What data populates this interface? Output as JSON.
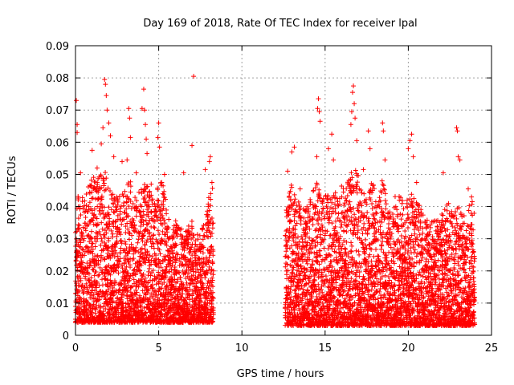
{
  "chart_data": {
    "type": "scatter",
    "title": "Day 169 of 2018, Rate Of TEC Index for receiver lpal",
    "xlabel": "GPS time / hours",
    "ylabel": "ROTI / TECUs",
    "xlim": [
      0,
      25
    ],
    "ylim": [
      0,
      0.09
    ],
    "grid": true,
    "marker": "+",
    "color": "#ff0000",
    "x_ticks": [
      {
        "v": 0,
        "label": "0"
      },
      {
        "v": 5,
        "label": "5"
      },
      {
        "v": 10,
        "label": "10"
      },
      {
        "v": 15,
        "label": "15"
      },
      {
        "v": 20,
        "label": "20"
      },
      {
        "v": 25,
        "label": "25"
      }
    ],
    "y_ticks": [
      {
        "v": 0,
        "label": "0"
      },
      {
        "v": 0.01,
        "label": "0.01"
      },
      {
        "v": 0.02,
        "label": "0.02"
      },
      {
        "v": 0.03,
        "label": "0.03"
      },
      {
        "v": 0.04,
        "label": "0.04"
      },
      {
        "v": 0.05,
        "label": "0.05"
      },
      {
        "v": 0.06,
        "label": "0.06"
      },
      {
        "v": 0.07,
        "label": "0.07"
      },
      {
        "v": 0.08,
        "label": "0.08"
      },
      {
        "v": 0.09,
        "label": "0.09"
      }
    ],
    "data_segments": [
      {
        "x_start": 0.0,
        "x_end": 8.3,
        "y_floor": 0.004
      },
      {
        "x_start": 12.6,
        "x_end": 24.0,
        "y_floor": 0.003
      }
    ],
    "series": [
      {
        "name": "ROTI",
        "points": [
          [
            0.05,
            0.073
          ],
          [
            0.1,
            0.0655
          ],
          [
            0.1,
            0.063
          ],
          [
            0.3,
            0.0505
          ],
          [
            0.45,
            0.0395
          ],
          [
            1.0,
            0.0575
          ],
          [
            1.3,
            0.052
          ],
          [
            1.55,
            0.0595
          ],
          [
            1.65,
            0.0645
          ],
          [
            1.75,
            0.0795
          ],
          [
            1.8,
            0.078
          ],
          [
            1.85,
            0.0745
          ],
          [
            1.9,
            0.07
          ],
          [
            2.0,
            0.066
          ],
          [
            2.1,
            0.062
          ],
          [
            2.3,
            0.0555
          ],
          [
            2.8,
            0.054
          ],
          [
            3.1,
            0.0545
          ],
          [
            3.2,
            0.0705
          ],
          [
            3.25,
            0.0675
          ],
          [
            3.3,
            0.0615
          ],
          [
            3.65,
            0.0505
          ],
          [
            4.0,
            0.0705
          ],
          [
            4.1,
            0.0765
          ],
          [
            4.15,
            0.07
          ],
          [
            4.2,
            0.0655
          ],
          [
            4.25,
            0.061
          ],
          [
            4.3,
            0.0565
          ],
          [
            4.55,
            0.047
          ],
          [
            4.95,
            0.0615
          ],
          [
            5.0,
            0.066
          ],
          [
            5.05,
            0.0585
          ],
          [
            5.35,
            0.05
          ],
          [
            6.5,
            0.0505
          ],
          [
            7.0,
            0.059
          ],
          [
            7.1,
            0.0805
          ],
          [
            7.8,
            0.0515
          ],
          [
            8.05,
            0.054
          ],
          [
            8.1,
            0.0555
          ],
          [
            8.2,
            0.0475
          ],
          [
            12.75,
            0.051
          ],
          [
            13.0,
            0.057
          ],
          [
            13.15,
            0.0585
          ],
          [
            13.5,
            0.0455
          ],
          [
            14.5,
            0.0555
          ],
          [
            14.55,
            0.0705
          ],
          [
            14.6,
            0.0735
          ],
          [
            14.65,
            0.0695
          ],
          [
            14.7,
            0.0665
          ],
          [
            15.2,
            0.058
          ],
          [
            15.4,
            0.0625
          ],
          [
            15.5,
            0.0545
          ],
          [
            16.55,
            0.0655
          ],
          [
            16.6,
            0.0695
          ],
          [
            16.65,
            0.0755
          ],
          [
            16.7,
            0.0775
          ],
          [
            16.75,
            0.072
          ],
          [
            16.8,
            0.0675
          ],
          [
            16.9,
            0.0605
          ],
          [
            17.3,
            0.0515
          ],
          [
            17.6,
            0.0635
          ],
          [
            17.7,
            0.058
          ],
          [
            18.45,
            0.066
          ],
          [
            18.5,
            0.0635
          ],
          [
            18.6,
            0.0545
          ],
          [
            20.0,
            0.058
          ],
          [
            20.1,
            0.0605
          ],
          [
            20.2,
            0.0625
          ],
          [
            20.3,
            0.0555
          ],
          [
            20.5,
            0.0475
          ],
          [
            22.1,
            0.0505
          ],
          [
            22.9,
            0.0645
          ],
          [
            22.95,
            0.0635
          ],
          [
            23.0,
            0.0555
          ],
          [
            23.1,
            0.0545
          ],
          [
            23.6,
            0.0455
          ],
          [
            23.8,
            0.043
          ]
        ],
        "envelope": {
          "hours": [
            0.0,
            0.25,
            0.5,
            0.75,
            1.0,
            1.25,
            1.5,
            1.75,
            2.0,
            2.25,
            2.5,
            2.75,
            3.0,
            3.25,
            3.5,
            3.75,
            4.0,
            4.25,
            4.5,
            4.75,
            5.0,
            5.25,
            5.5,
            5.75,
            6.0,
            6.25,
            6.5,
            6.75,
            7.0,
            7.25,
            7.5,
            7.75,
            8.0,
            8.3,
            12.6,
            12.75,
            13.0,
            13.25,
            13.5,
            13.75,
            14.0,
            14.25,
            14.5,
            14.75,
            15.0,
            15.25,
            15.5,
            15.75,
            16.0,
            16.25,
            16.5,
            16.75,
            17.0,
            17.25,
            17.5,
            17.75,
            18.0,
            18.25,
            18.5,
            18.75,
            19.0,
            19.25,
            19.5,
            19.75,
            20.0,
            20.25,
            20.5,
            20.75,
            21.0,
            21.25,
            21.5,
            21.75,
            22.0,
            22.25,
            22.5,
            22.75,
            23.0,
            23.25,
            23.5,
            23.75,
            24.0
          ],
          "upper": [
            0.042,
            0.045,
            0.042,
            0.046,
            0.05,
            0.048,
            0.05,
            0.052,
            0.046,
            0.044,
            0.045,
            0.044,
            0.046,
            0.05,
            0.043,
            0.044,
            0.046,
            0.048,
            0.044,
            0.043,
            0.047,
            0.05,
            0.04,
            0.032,
            0.036,
            0.034,
            0.033,
            0.034,
            0.036,
            0.032,
            0.032,
            0.036,
            0.046,
            0.046,
            0.036,
            0.044,
            0.048,
            0.044,
            0.04,
            0.04,
            0.04,
            0.046,
            0.048,
            0.043,
            0.044,
            0.044,
            0.046,
            0.043,
            0.047,
            0.048,
            0.05,
            0.052,
            0.05,
            0.045,
            0.044,
            0.048,
            0.046,
            0.044,
            0.05,
            0.04,
            0.04,
            0.044,
            0.045,
            0.04,
            0.044,
            0.044,
            0.042,
            0.04,
            0.036,
            0.036,
            0.036,
            0.036,
            0.038,
            0.04,
            0.042,
            0.038,
            0.04,
            0.038,
            0.036,
            0.044,
            0.04
          ]
        }
      }
    ]
  }
}
